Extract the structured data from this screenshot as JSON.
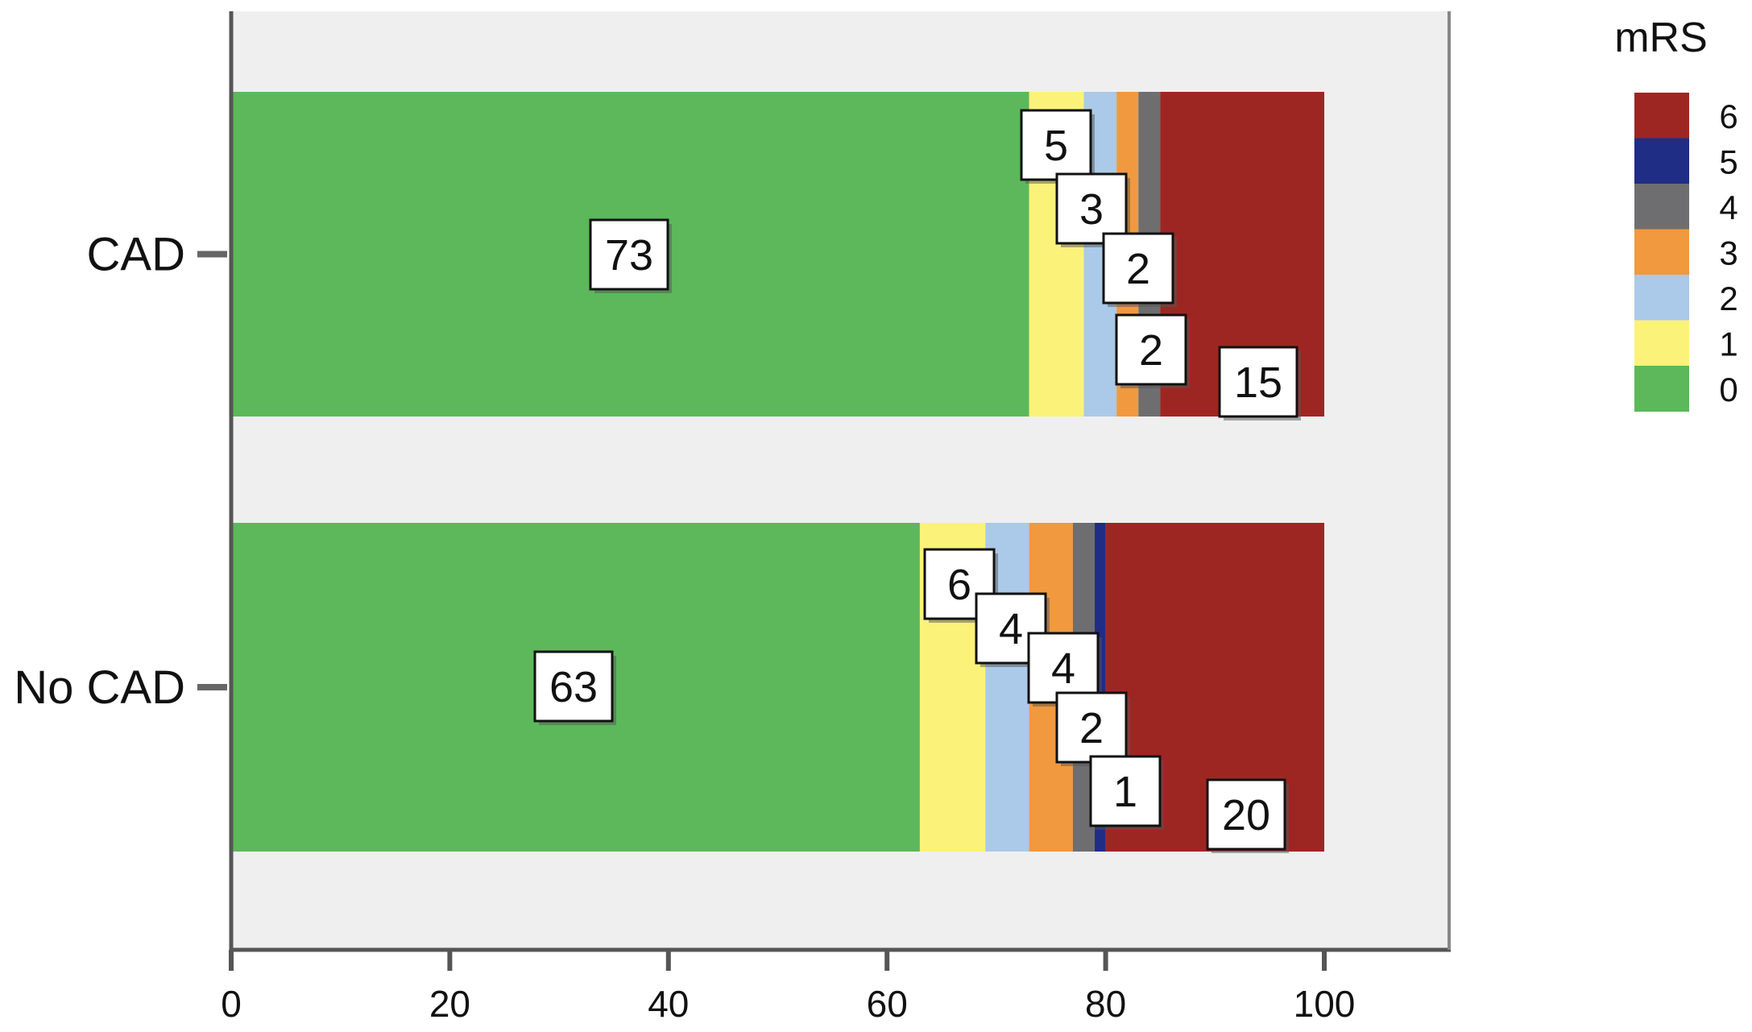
{
  "chart_data": {
    "type": "bar",
    "orientation": "horizontal",
    "stacked": true,
    "categories": [
      "CAD",
      "No CAD"
    ],
    "legend": {
      "title": "mRS",
      "placement": "right",
      "entries": [
        "6",
        "5",
        "4",
        "3",
        "2",
        "1",
        "0"
      ]
    },
    "series": [
      {
        "name": "0",
        "color": "#5cb85a",
        "values": [
          73,
          63
        ]
      },
      {
        "name": "1",
        "color": "#fbf27a",
        "values": [
          5,
          6
        ]
      },
      {
        "name": "2",
        "color": "#abc9e8",
        "values": [
          3,
          4
        ]
      },
      {
        "name": "3",
        "color": "#f0993f",
        "values": [
          2,
          4
        ]
      },
      {
        "name": "4",
        "color": "#6e6e70",
        "values": [
          2,
          2
        ]
      },
      {
        "name": "5",
        "color": "#1f2d84",
        "values": [
          0,
          1
        ]
      },
      {
        "name": "6",
        "color": "#9e2622",
        "values": [
          15,
          20
        ]
      }
    ],
    "data_labels": [
      [
        "73",
        "5",
        "3",
        "2",
        "2",
        "15"
      ],
      [
        "63",
        "6",
        "4",
        "4",
        "2",
        "1",
        "20"
      ]
    ],
    "xlim": [
      0,
      111
    ],
    "xticks": [
      "0",
      "20",
      "40",
      "60",
      "80",
      "100"
    ],
    "xlabel": "",
    "ylabel": "",
    "grid": false,
    "background": "#efefef"
  }
}
